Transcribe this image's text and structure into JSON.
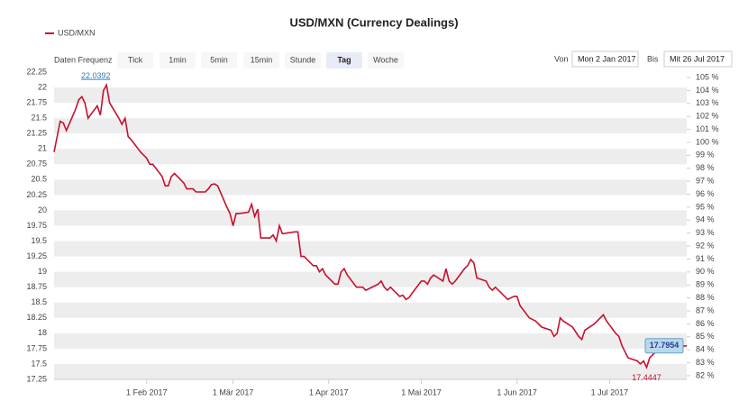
{
  "chart_data": {
    "type": "line",
    "title": "USD/MXN (Currency Dealings)",
    "controls": {
      "frequency_label": "Daten Frequenz",
      "buttons": [
        "Tick",
        "1min",
        "5min",
        "15min",
        "Stunde",
        "Tag",
        "Woche"
      ],
      "active_button": "Tag",
      "from_label": "Von",
      "from_date": "Mon 2 Jan 2017",
      "to_label": "Bis",
      "to_date": "Mit 26 Jul 2017"
    },
    "x": [
      "2017-01-02",
      "2017-01-03",
      "2017-01-04",
      "2017-01-05",
      "2017-01-06",
      "2017-01-09",
      "2017-01-10",
      "2017-01-11",
      "2017-01-12",
      "2017-01-13",
      "2017-01-16",
      "2017-01-17",
      "2017-01-18",
      "2017-01-19",
      "2017-01-20",
      "2017-01-23",
      "2017-01-24",
      "2017-01-25",
      "2017-01-26",
      "2017-01-27",
      "2017-01-30",
      "2017-01-31",
      "2017-02-01",
      "2017-02-02",
      "2017-02-03",
      "2017-02-06",
      "2017-02-07",
      "2017-02-08",
      "2017-02-09",
      "2017-02-10",
      "2017-02-13",
      "2017-02-14",
      "2017-02-16",
      "2017-02-17",
      "2017-02-20",
      "2017-02-21",
      "2017-02-22",
      "2017-02-23",
      "2017-02-24",
      "2017-02-27",
      "2017-02-28",
      "2017-03-01",
      "2017-03-02",
      "2017-03-03",
      "2017-03-06",
      "2017-03-07",
      "2017-03-08",
      "2017-03-09",
      "2017-03-10",
      "2017-03-13",
      "2017-03-14",
      "2017-03-15",
      "2017-03-16",
      "2017-03-17",
      "2017-03-21",
      "2017-03-22",
      "2017-03-23",
      "2017-03-24",
      "2017-03-27",
      "2017-03-28",
      "2017-03-29",
      "2017-03-30",
      "2017-03-31",
      "2017-04-03",
      "2017-04-04",
      "2017-04-05",
      "2017-04-06",
      "2017-04-07",
      "2017-04-10",
      "2017-04-12",
      "2017-04-13",
      "2017-04-17",
      "2017-04-18",
      "2017-04-19",
      "2017-04-20",
      "2017-04-21",
      "2017-04-24",
      "2017-04-25",
      "2017-04-26",
      "2017-04-27",
      "2017-04-28",
      "2017-05-01",
      "2017-05-02",
      "2017-05-03",
      "2017-05-04",
      "2017-05-05",
      "2017-05-08",
      "2017-05-09",
      "2017-05-10",
      "2017-05-11",
      "2017-05-12",
      "2017-05-15",
      "2017-05-16",
      "2017-05-17",
      "2017-05-18",
      "2017-05-19",
      "2017-05-22",
      "2017-05-23",
      "2017-05-24",
      "2017-05-25",
      "2017-05-26",
      "2017-05-29",
      "2017-05-31",
      "2017-06-01",
      "2017-06-02",
      "2017-06-05",
      "2017-06-07",
      "2017-06-09",
      "2017-06-12",
      "2017-06-13",
      "2017-06-14",
      "2017-06-15",
      "2017-06-16",
      "2017-06-19",
      "2017-06-21",
      "2017-06-22",
      "2017-06-23",
      "2017-06-26",
      "2017-06-27",
      "2017-06-29",
      "2017-06-30",
      "2017-07-03",
      "2017-07-04",
      "2017-07-05",
      "2017-07-06",
      "2017-07-07",
      "2017-07-10",
      "2017-07-11",
      "2017-07-12",
      "2017-07-13",
      "2017-07-14",
      "2017-07-17",
      "2017-07-18",
      "2017-07-19",
      "2017-07-26"
    ],
    "series": [
      {
        "name": "USD/MXN",
        "color": "#c8102e",
        "values": [
          20.95,
          21.2,
          21.45,
          21.42,
          21.3,
          21.65,
          21.8,
          21.85,
          21.75,
          21.5,
          21.7,
          21.55,
          21.95,
          22.0392,
          21.75,
          21.5,
          21.4,
          21.5,
          21.2,
          21.15,
          20.95,
          20.9,
          20.85,
          20.75,
          20.75,
          20.55,
          20.4,
          20.4,
          20.55,
          20.6,
          20.45,
          20.35,
          20.35,
          20.3,
          20.3,
          20.35,
          20.42,
          20.43,
          20.4,
          20.05,
          19.95,
          19.75,
          19.95,
          19.95,
          19.97,
          20.1,
          19.9,
          20.02,
          19.55,
          19.55,
          19.6,
          19.5,
          19.75,
          19.62,
          19.65,
          19.65,
          19.25,
          19.25,
          19.1,
          19.1,
          19.0,
          19.05,
          18.95,
          18.8,
          18.8,
          19.0,
          19.05,
          18.95,
          18.75,
          18.75,
          18.7,
          18.8,
          18.85,
          18.75,
          18.7,
          18.75,
          18.6,
          18.62,
          18.55,
          18.58,
          18.65,
          18.85,
          18.85,
          18.8,
          18.9,
          18.95,
          18.85,
          19.05,
          18.85,
          18.8,
          18.85,
          19.05,
          19.1,
          19.2,
          19.15,
          18.9,
          18.85,
          18.75,
          18.7,
          18.75,
          18.7,
          18.55,
          18.6,
          18.6,
          18.45,
          18.25,
          18.2,
          18.1,
          18.05,
          17.95,
          18.0,
          18.25,
          18.2,
          18.1,
          17.95,
          17.9,
          18.05,
          18.15,
          18.2,
          18.3,
          18.2,
          18.0,
          17.95,
          17.8,
          17.7,
          17.6,
          17.55,
          17.5,
          17.55,
          17.4447,
          17.6,
          17.75,
          17.75,
          17.78,
          17.7954
        ]
      }
    ],
    "xlim": [
      "2017-01-02",
      "2017-07-26"
    ],
    "xticks": [
      {
        "value": "2017-02-01",
        "label": "1 Feb 2017"
      },
      {
        "value": "2017-03-01",
        "label": "1 Mär 2017"
      },
      {
        "value": "2017-04-01",
        "label": "1 Apr 2017"
      },
      {
        "value": "2017-05-01",
        "label": "1 Mai 2017"
      },
      {
        "value": "2017-06-01",
        "label": "1 Jun 2017"
      },
      {
        "value": "2017-07-01",
        "label": "1 Jul 2017"
      }
    ],
    "ylim": [
      17.25,
      22.25
    ],
    "yticks": [
      17.25,
      17.5,
      17.75,
      18,
      18.25,
      18.5,
      18.75,
      19,
      19.25,
      19.5,
      19.75,
      20,
      20.25,
      20.5,
      20.75,
      21,
      21.25,
      21.5,
      21.75,
      22,
      22.25
    ],
    "y2lim": [
      81.72,
      105.42
    ],
    "y2ticks": [
      {
        "value": 82,
        "label": "82 %"
      },
      {
        "value": 83,
        "label": "83 %"
      },
      {
        "value": 84,
        "label": "84 %"
      },
      {
        "value": 85,
        "label": "85 %"
      },
      {
        "value": 86,
        "label": "86 %"
      },
      {
        "value": 87,
        "label": "87 %"
      },
      {
        "value": 88,
        "label": "88 %"
      },
      {
        "value": 89,
        "label": "89 %"
      },
      {
        "value": 90,
        "label": "90 %"
      },
      {
        "value": 91,
        "label": "91 %"
      },
      {
        "value": 92,
        "label": "92 %"
      },
      {
        "value": 93,
        "label": "93 %"
      },
      {
        "value": 94,
        "label": "94 %"
      },
      {
        "value": 95,
        "label": "95 %"
      },
      {
        "value": 96,
        "label": "96 %"
      },
      {
        "value": 97,
        "label": "97 %"
      },
      {
        "value": 98,
        "label": "98 %"
      },
      {
        "value": 99,
        "label": "99 %"
      },
      {
        "value": 100,
        "label": "100 %"
      },
      {
        "value": 101,
        "label": "101 %"
      },
      {
        "value": 102,
        "label": "102 %"
      },
      {
        "value": 103,
        "label": "103 %"
      },
      {
        "value": 104,
        "label": "104 %"
      },
      {
        "value": 105,
        "label": "105 %"
      }
    ],
    "grid": true,
    "legend": "top-left"
  }
}
